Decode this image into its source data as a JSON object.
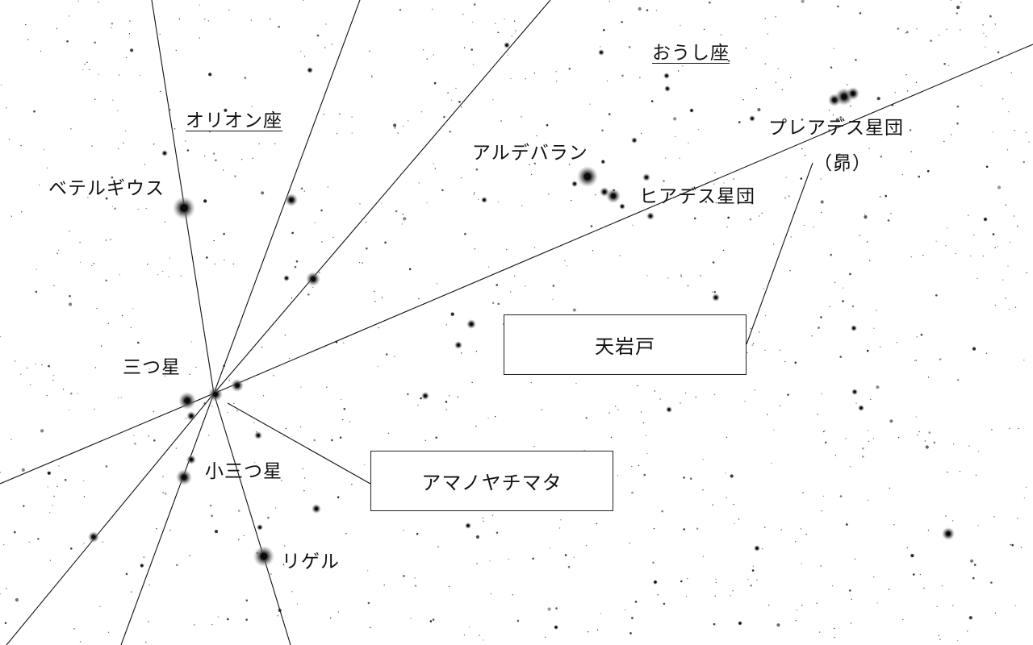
{
  "constellations": {
    "orion": "オリオン座",
    "auriga": "おうし座"
  },
  "stars": {
    "betelgeuse": "ベテルギウス",
    "aldebaran": "アルデバラン",
    "mitsuboshi": "三つ星",
    "komitsuboshi": "小三つ星",
    "rigel": "リゲル"
  },
  "clusters": {
    "hyades": "ヒアデス星団",
    "pleiades": "プレアデス星団",
    "subaru": "（昴）"
  },
  "callouts": {
    "amanoiwato": "天岩戸",
    "amanoyachimata": "アマノヤチマタ"
  }
}
